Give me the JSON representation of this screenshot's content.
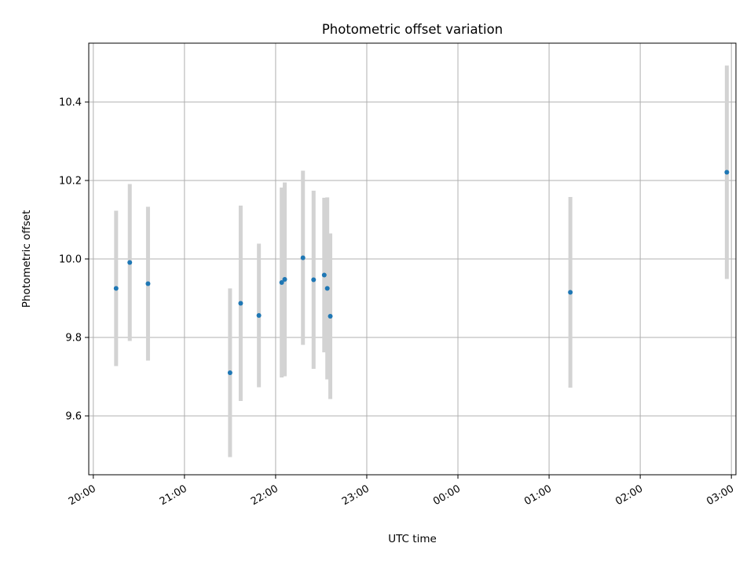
{
  "chart_data": {
    "type": "scatter",
    "title": "Photometric offset variation",
    "xlabel": "UTC time",
    "ylabel": "Photometric offset",
    "x_unit": "UTC hh:mm (hours after 20:00 exceeding 24 wrap to next day)",
    "xlim": [
      "19:57",
      "03:03"
    ],
    "ylim": [
      9.45,
      10.55
    ],
    "xticks": [
      "20:00",
      "21:00",
      "22:00",
      "23:00",
      "00:00",
      "01:00",
      "02:00",
      "03:00"
    ],
    "yticks": [
      "9.6",
      "9.8",
      "10.0",
      "10.2",
      "10.4"
    ],
    "grid": true,
    "marker_color": "#1f77b4",
    "errorbar_color": "#d3d3d3",
    "points": [
      {
        "x": "20:15",
        "y": 9.925,
        "err": 0.198
      },
      {
        "x": "20:24",
        "y": 9.991,
        "err": 0.2
      },
      {
        "x": "20:36",
        "y": 9.937,
        "err": 0.196
      },
      {
        "x": "21:30",
        "y": 9.71,
        "err": 0.215
      },
      {
        "x": "21:37",
        "y": 9.887,
        "err": 0.249
      },
      {
        "x": "21:49",
        "y": 9.856,
        "err": 0.183
      },
      {
        "x": "22:04",
        "y": 9.94,
        "err": 0.242
      },
      {
        "x": "22:06",
        "y": 9.948,
        "err": 0.247
      },
      {
        "x": "22:18",
        "y": 10.003,
        "err": 0.222
      },
      {
        "x": "22:25",
        "y": 9.947,
        "err": 0.227
      },
      {
        "x": "22:32",
        "y": 9.959,
        "err": 0.197
      },
      {
        "x": "22:34",
        "y": 9.925,
        "err": 0.232
      },
      {
        "x": "22:36",
        "y": 9.854,
        "err": 0.211
      },
      {
        "x": "01:14",
        "y": 9.915,
        "err": 0.243
      },
      {
        "x": "02:57",
        "y": 10.221,
        "err": 0.272
      }
    ]
  }
}
